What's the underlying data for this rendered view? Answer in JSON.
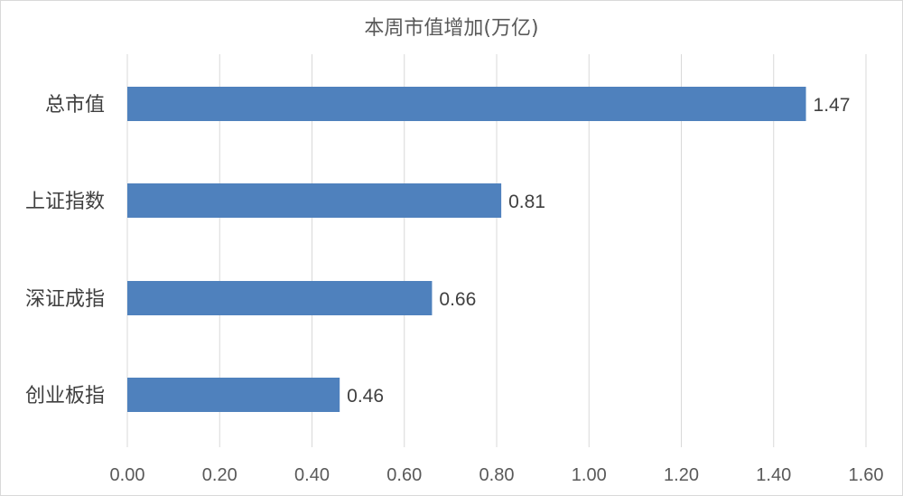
{
  "chart_data": {
    "type": "bar",
    "orientation": "horizontal",
    "title": "本周市值增加(万亿)",
    "categories": [
      "总市值",
      "上证指数",
      "深证成指",
      "创业板指"
    ],
    "values": [
      1.47,
      0.81,
      0.66,
      0.46
    ],
    "data_labels": [
      "1.47",
      "0.81",
      "0.66",
      "0.46"
    ],
    "xlim": [
      0,
      1.6
    ],
    "xticks": [
      "0.00",
      "0.20",
      "0.40",
      "0.60",
      "0.80",
      "1.00",
      "1.20",
      "1.40",
      "1.60"
    ],
    "grid": "vertical",
    "legend": "none",
    "bar_color": "#4f81bd"
  }
}
